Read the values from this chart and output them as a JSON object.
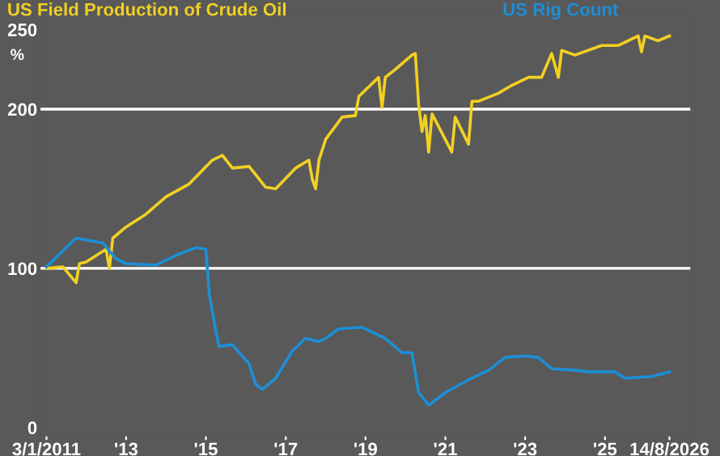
{
  "chart_data": {
    "type": "line",
    "ylabel": "%",
    "series": [
      {
        "name": "US Field Production of Crude Oil",
        "color": "#f2d024",
        "x": [
          "2011-01-03",
          "2011-06-01",
          "2011-10-01",
          "2011-11-01",
          "2012-01-01",
          "2012-07-01",
          "2012-08-01",
          "2012-09-01",
          "2013-01-01",
          "2013-07-01",
          "2014-01-01",
          "2014-08-01",
          "2015-03-01",
          "2015-06-01",
          "2015-09-01",
          "2016-02-01",
          "2016-07-01",
          "2016-10-01",
          "2017-04-01",
          "2017-08-01",
          "2017-09-01",
          "2017-10-01",
          "2017-11-01",
          "2018-01-01",
          "2018-06-01",
          "2018-10-01",
          "2018-11-01",
          "2019-05-01",
          "2019-06-01",
          "2019-07-01",
          "2019-10-01",
          "2020-03-01",
          "2020-04-01",
          "2020-05-01",
          "2020-06-01",
          "2020-07-01",
          "2020-08-01",
          "2020-09-01",
          "2021-03-01",
          "2021-04-01",
          "2021-08-01",
          "2021-09-01",
          "2021-11-01",
          "2022-05-01",
          "2022-09-01",
          "2023-02-01",
          "2023-06-01",
          "2023-09-01",
          "2023-11-01",
          "2023-12-01",
          "2024-04-01",
          "2024-12-01",
          "2025-05-01",
          "2025-11-01",
          "2025-12-01",
          "2026-01-01",
          "2026-05-01",
          "2026-08-14"
        ],
        "values": [
          100,
          101,
          91,
          103,
          104,
          112,
          100,
          119,
          126,
          134,
          145,
          153,
          168,
          171,
          163,
          164,
          151,
          150,
          163,
          168,
          156,
          150,
          168,
          181,
          195,
          196,
          208,
          220,
          201,
          220,
          225,
          234,
          235,
          203,
          186,
          196,
          173,
          197,
          173,
          195,
          178,
          205,
          205,
          210,
          215,
          220,
          220,
          235,
          220,
          237,
          234,
          240,
          240,
          246,
          236,
          246,
          243,
          246
        ]
      },
      {
        "name": "US Rig Count",
        "color": "#1c8fd6",
        "x": [
          "2011-01-03",
          "2011-10-01",
          "2012-06-01",
          "2012-10-01",
          "2013-01-01",
          "2013-10-01",
          "2014-05-01",
          "2014-10-01",
          "2015-01-01",
          "2015-02-01",
          "2015-04-01",
          "2015-05-01",
          "2015-09-01",
          "2016-02-01",
          "2016-04-01",
          "2016-06-01",
          "2016-10-01",
          "2017-03-01",
          "2017-07-01",
          "2017-11-01",
          "2018-01-01",
          "2018-05-01",
          "2018-12-01",
          "2019-07-01",
          "2019-12-01",
          "2020-03-01",
          "2020-05-01",
          "2020-08-01",
          "2021-01-01",
          "2021-08-01",
          "2022-02-01",
          "2022-07-01",
          "2023-01-01",
          "2023-05-01",
          "2023-09-01",
          "2024-04-01",
          "2024-08-01",
          "2025-04-01",
          "2025-07-01",
          "2026-03-01",
          "2026-08-14"
        ],
        "values": [
          101,
          119,
          116,
          106,
          103,
          102,
          109,
          113,
          112,
          84,
          61,
          51,
          52,
          40,
          27,
          24,
          31,
          48,
          56,
          54,
          56,
          62,
          63,
          56,
          47,
          47,
          22,
          14,
          22,
          30,
          36,
          44,
          45,
          44,
          37,
          36,
          35,
          35,
          31,
          32,
          35
        ]
      }
    ],
    "xlim": [
      "2010-11-01",
      "2027-03-01"
    ],
    "xticks": [
      {
        "value": "2011-01-03",
        "label": "3/1/2011"
      },
      {
        "value": "2013-01-01",
        "label": "'13"
      },
      {
        "value": "2015-01-01",
        "label": "'15"
      },
      {
        "value": "2017-01-01",
        "label": "'17"
      },
      {
        "value": "2019-01-01",
        "label": "'19"
      },
      {
        "value": "2021-01-01",
        "label": "'21"
      },
      {
        "value": "2023-01-01",
        "label": "'23"
      },
      {
        "value": "2025-01-01",
        "label": "'25"
      },
      {
        "value": "2026-08-14",
        "label": "14/8/2026"
      }
    ],
    "ylim": [
      -5,
      260
    ],
    "yticks": [
      0,
      100,
      200,
      250
    ],
    "ref_lines": [
      {
        "axis": "y",
        "value": 100,
        "color": "#ffffff"
      },
      {
        "axis": "y",
        "value": 200,
        "color": "#ffffff"
      }
    ],
    "grid": false,
    "legend": "top left"
  }
}
